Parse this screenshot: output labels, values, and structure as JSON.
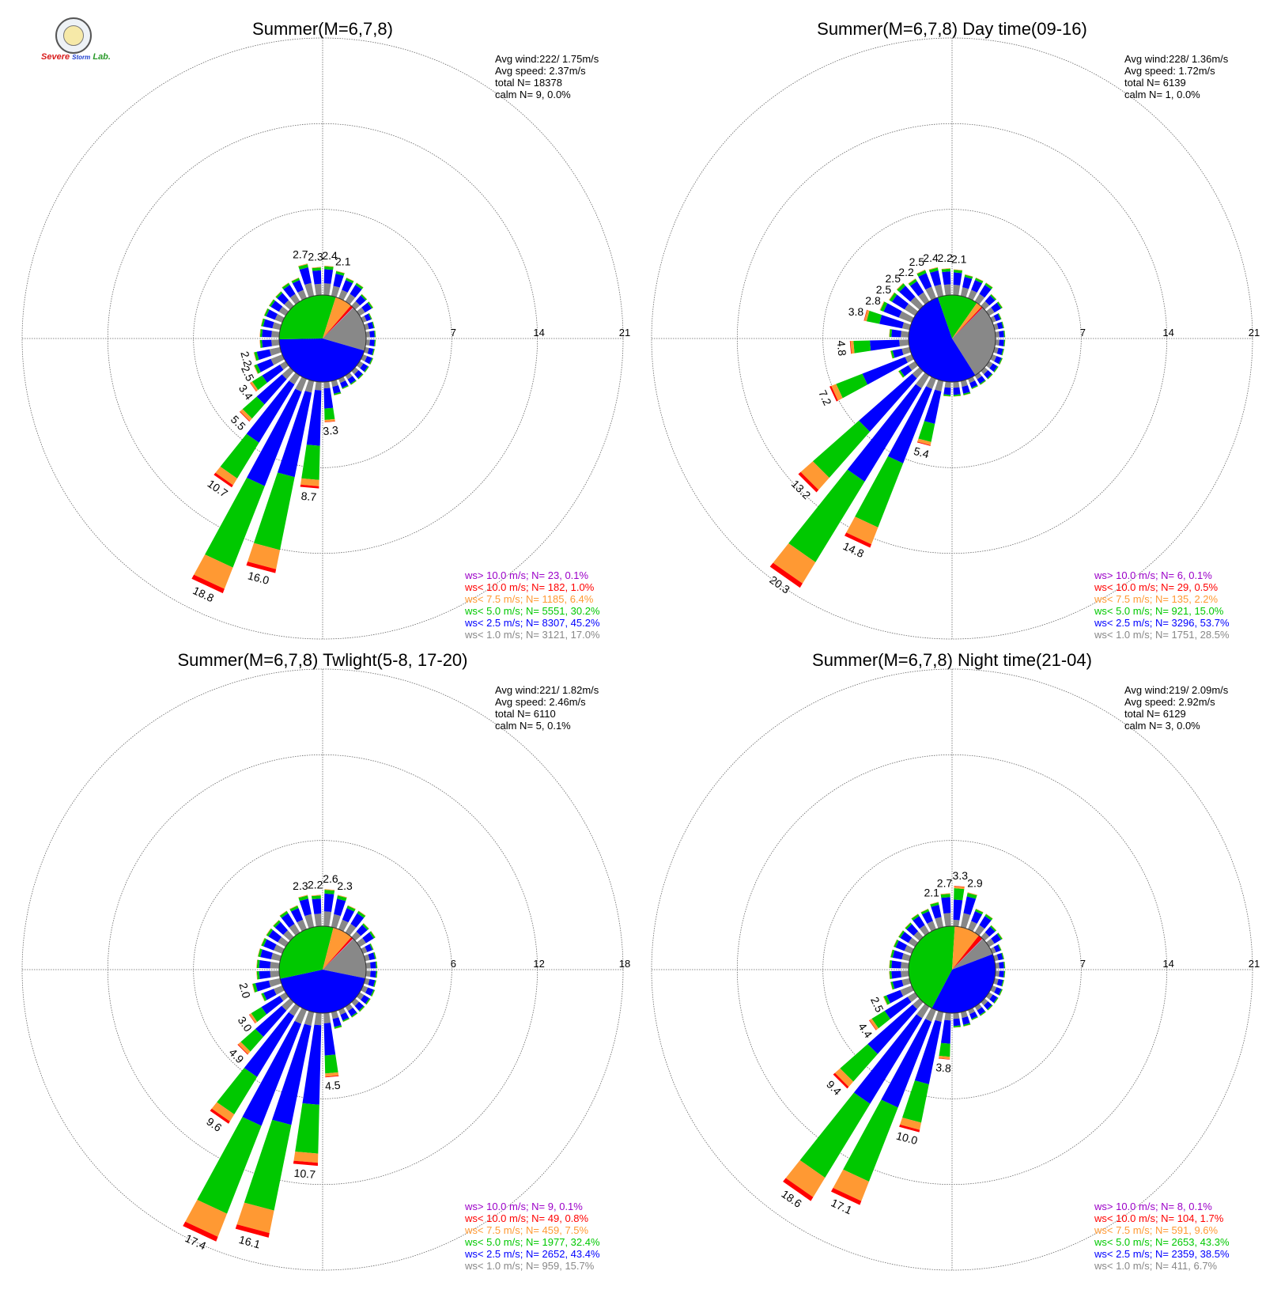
{
  "logo": {
    "text_severe": "Severe",
    "text_storm": "Storm",
    "text_lab": "Lab."
  },
  "colors": {
    "gt10": "#9b00c8",
    "lt10": "#ff0000",
    "lt7_5": "#ff9933",
    "lt5": "#00c800",
    "lt2_5": "#0000ff",
    "lt1": "#888888"
  },
  "chart_data": [
    {
      "type": "windrose",
      "title": "Summer(M=6,7,8)",
      "rings": [
        7,
        14,
        21
      ],
      "stats": [
        "Avg wind:222/ 1.75m/s",
        "Avg speed: 2.37m/s",
        "total N=      18378",
        "calm N=      9,   0.0%"
      ],
      "legend": [
        "ws> 10.0 m/s; N=     23,  0.1%",
        "ws< 10.0 m/s; N=    182,  1.0%",
        "ws<  7.5 m/s; N=  1185,  6.4%",
        "ws<  5.0 m/s; N=  5551, 30.2%",
        "ws<  2.5 m/s; N=  8307, 45.2%",
        "ws<  1.0 m/s; N=  3121, 17.0%"
      ],
      "pie": [
        0.17,
        0.452,
        0.302,
        0.064,
        0.01,
        0.001
      ],
      "labeled_bars": [
        {
          "dir": 345,
          "value": 2.7,
          "label": "2.7"
        },
        {
          "dir": 355,
          "value": 2.3,
          "label": "2.3"
        },
        {
          "dir": 5,
          "value": 2.4,
          "label": "2.4"
        },
        {
          "dir": 15,
          "value": 2.1,
          "label": "2.1"
        },
        {
          "dir": 255,
          "value": 2.2,
          "label": "2.2"
        },
        {
          "dir": 245,
          "value": 2.5,
          "label": "2.5"
        },
        {
          "dir": 235,
          "value": 3.4,
          "label": "3.4"
        },
        {
          "dir": 225,
          "value": 5.5,
          "label": "5.5"
        },
        {
          "dir": 215,
          "value": 10.7,
          "label": "10.7"
        },
        {
          "dir": 205,
          "value": 18.8,
          "label": "18.8"
        },
        {
          "dir": 195,
          "value": 16.0,
          "label": "16.0"
        },
        {
          "dir": 185,
          "value": 8.7,
          "label": "8.7"
        },
        {
          "dir": 175,
          "value": 3.3,
          "label": "3.3"
        }
      ]
    },
    {
      "type": "windrose",
      "title": "Summer(M=6,7,8) Day time(09-16)",
      "rings": [
        7,
        14,
        21
      ],
      "stats": [
        "Avg wind:228/ 1.36m/s",
        "Avg speed: 1.72m/s",
        "total N=        6139",
        "calm N=      1,   0.0%"
      ],
      "legend": [
        "ws> 10.0 m/s; N=      6,  0.1%",
        "ws< 10.0 m/s; N=     29,  0.5%",
        "ws<  7.5 m/s; N=    135,  2.2%",
        "ws<  5.0 m/s; N=    921, 15.0%",
        "ws<  2.5 m/s; N=  3296, 53.7%",
        "ws<  1.0 m/s; N=  1751, 28.5%"
      ],
      "pie": [
        0.285,
        0.537,
        0.15,
        0.022,
        0.005,
        0.001
      ],
      "labeled_bars": [
        {
          "dir": 345,
          "value": 2.4,
          "label": "2.4"
        },
        {
          "dir": 355,
          "value": 2.2,
          "label": "2.2"
        },
        {
          "dir": 5,
          "value": 2.1,
          "label": "2.1"
        },
        {
          "dir": 335,
          "value": 2.5,
          "label": "2.5"
        },
        {
          "dir": 325,
          "value": 2.2,
          "label": "2.2"
        },
        {
          "dir": 315,
          "value": 2.5,
          "label": "2.5"
        },
        {
          "dir": 305,
          "value": 2.5,
          "label": "2.5"
        },
        {
          "dir": 295,
          "value": 2.8,
          "label": "2.8"
        },
        {
          "dir": 285,
          "value": 3.8,
          "label": "3.8"
        },
        {
          "dir": 265,
          "value": 4.8,
          "label": "4.8"
        },
        {
          "dir": 245,
          "value": 7.2,
          "label": "7.2"
        },
        {
          "dir": 225,
          "value": 13.2,
          "label": "13.2"
        },
        {
          "dir": 215,
          "value": 20.3,
          "label": "20.3"
        },
        {
          "dir": 205,
          "value": 14.8,
          "label": "14.8"
        },
        {
          "dir": 195,
          "value": 5.4,
          "label": "5.4"
        }
      ]
    },
    {
      "type": "windrose",
      "title": "Summer(M=6,7,8) Twlight(5-8, 17-20)",
      "rings": [
        6,
        12,
        18
      ],
      "stats": [
        "Avg wind:221/ 1.82m/s",
        "Avg speed: 2.46m/s",
        "total N=        6110",
        "calm N=      5,   0.1%"
      ],
      "legend": [
        "ws> 10.0 m/s; N=      9,  0.1%",
        "ws< 10.0 m/s; N=     49,  0.8%",
        "ws<  7.5 m/s; N=    459,  7.5%",
        "ws<  5.0 m/s; N=  1977, 32.4%",
        "ws<  2.5 m/s; N=  2652, 43.4%",
        "ws<  1.0 m/s; N=    959, 15.7%"
      ],
      "pie": [
        0.157,
        0.434,
        0.324,
        0.075,
        0.008,
        0.001
      ],
      "labeled_bars": [
        {
          "dir": 345,
          "value": 2.3,
          "label": "2.3"
        },
        {
          "dir": 355,
          "value": 2.2,
          "label": "2.2"
        },
        {
          "dir": 5,
          "value": 2.6,
          "label": "2.6"
        },
        {
          "dir": 15,
          "value": 2.3,
          "label": "2.3"
        },
        {
          "dir": 255,
          "value": 2.0,
          "label": "2.0"
        },
        {
          "dir": 235,
          "value": 3.0,
          "label": "3.0"
        },
        {
          "dir": 225,
          "value": 4.9,
          "label": "4.9"
        },
        {
          "dir": 215,
          "value": 9.6,
          "label": "9.6"
        },
        {
          "dir": 205,
          "value": 17.4,
          "label": "17.4"
        },
        {
          "dir": 195,
          "value": 16.1,
          "label": "16.1"
        },
        {
          "dir": 185,
          "value": 10.7,
          "label": "10.7"
        },
        {
          "dir": 175,
          "value": 4.5,
          "label": "4.5"
        }
      ]
    },
    {
      "type": "windrose",
      "title": "Summer(M=6,7,8) Night time(21-04)",
      "rings": [
        7,
        14,
        21
      ],
      "stats": [
        "Avg wind:219/ 2.09m/s",
        "Avg speed: 2.92m/s",
        "total N=        6129",
        "calm N=      3,   0.0%"
      ],
      "legend": [
        "ws> 10.0 m/s; N=      8,  0.1%",
        "ws< 10.0 m/s; N=    104,  1.7%",
        "ws<  7.5 m/s; N=    591,  9.6%",
        "ws<  5.0 m/s; N=  2653, 43.3%",
        "ws<  2.5 m/s; N=  2359, 38.5%",
        "ws<  1.0 m/s; N=    411,  6.7%"
      ],
      "pie": [
        0.067,
        0.385,
        0.433,
        0.096,
        0.017,
        0.001
      ],
      "labeled_bars": [
        {
          "dir": 345,
          "value": 2.1,
          "label": "2.1"
        },
        {
          "dir": 355,
          "value": 2.7,
          "label": "2.7"
        },
        {
          "dir": 5,
          "value": 3.3,
          "label": "3.3"
        },
        {
          "dir": 15,
          "value": 2.9,
          "label": "2.9"
        },
        {
          "dir": 245,
          "value": 2.5,
          "label": "2.5"
        },
        {
          "dir": 235,
          "value": 4.4,
          "label": "4.4"
        },
        {
          "dir": 225,
          "value": 9.4,
          "label": "9.4"
        },
        {
          "dir": 215,
          "value": 18.6,
          "label": "18.6"
        },
        {
          "dir": 205,
          "value": 17.1,
          "label": "17.1"
        },
        {
          "dir": 195,
          "value": 10.0,
          "label": "10.0"
        },
        {
          "dir": 185,
          "value": 3.8,
          "label": "3.8"
        }
      ]
    }
  ]
}
